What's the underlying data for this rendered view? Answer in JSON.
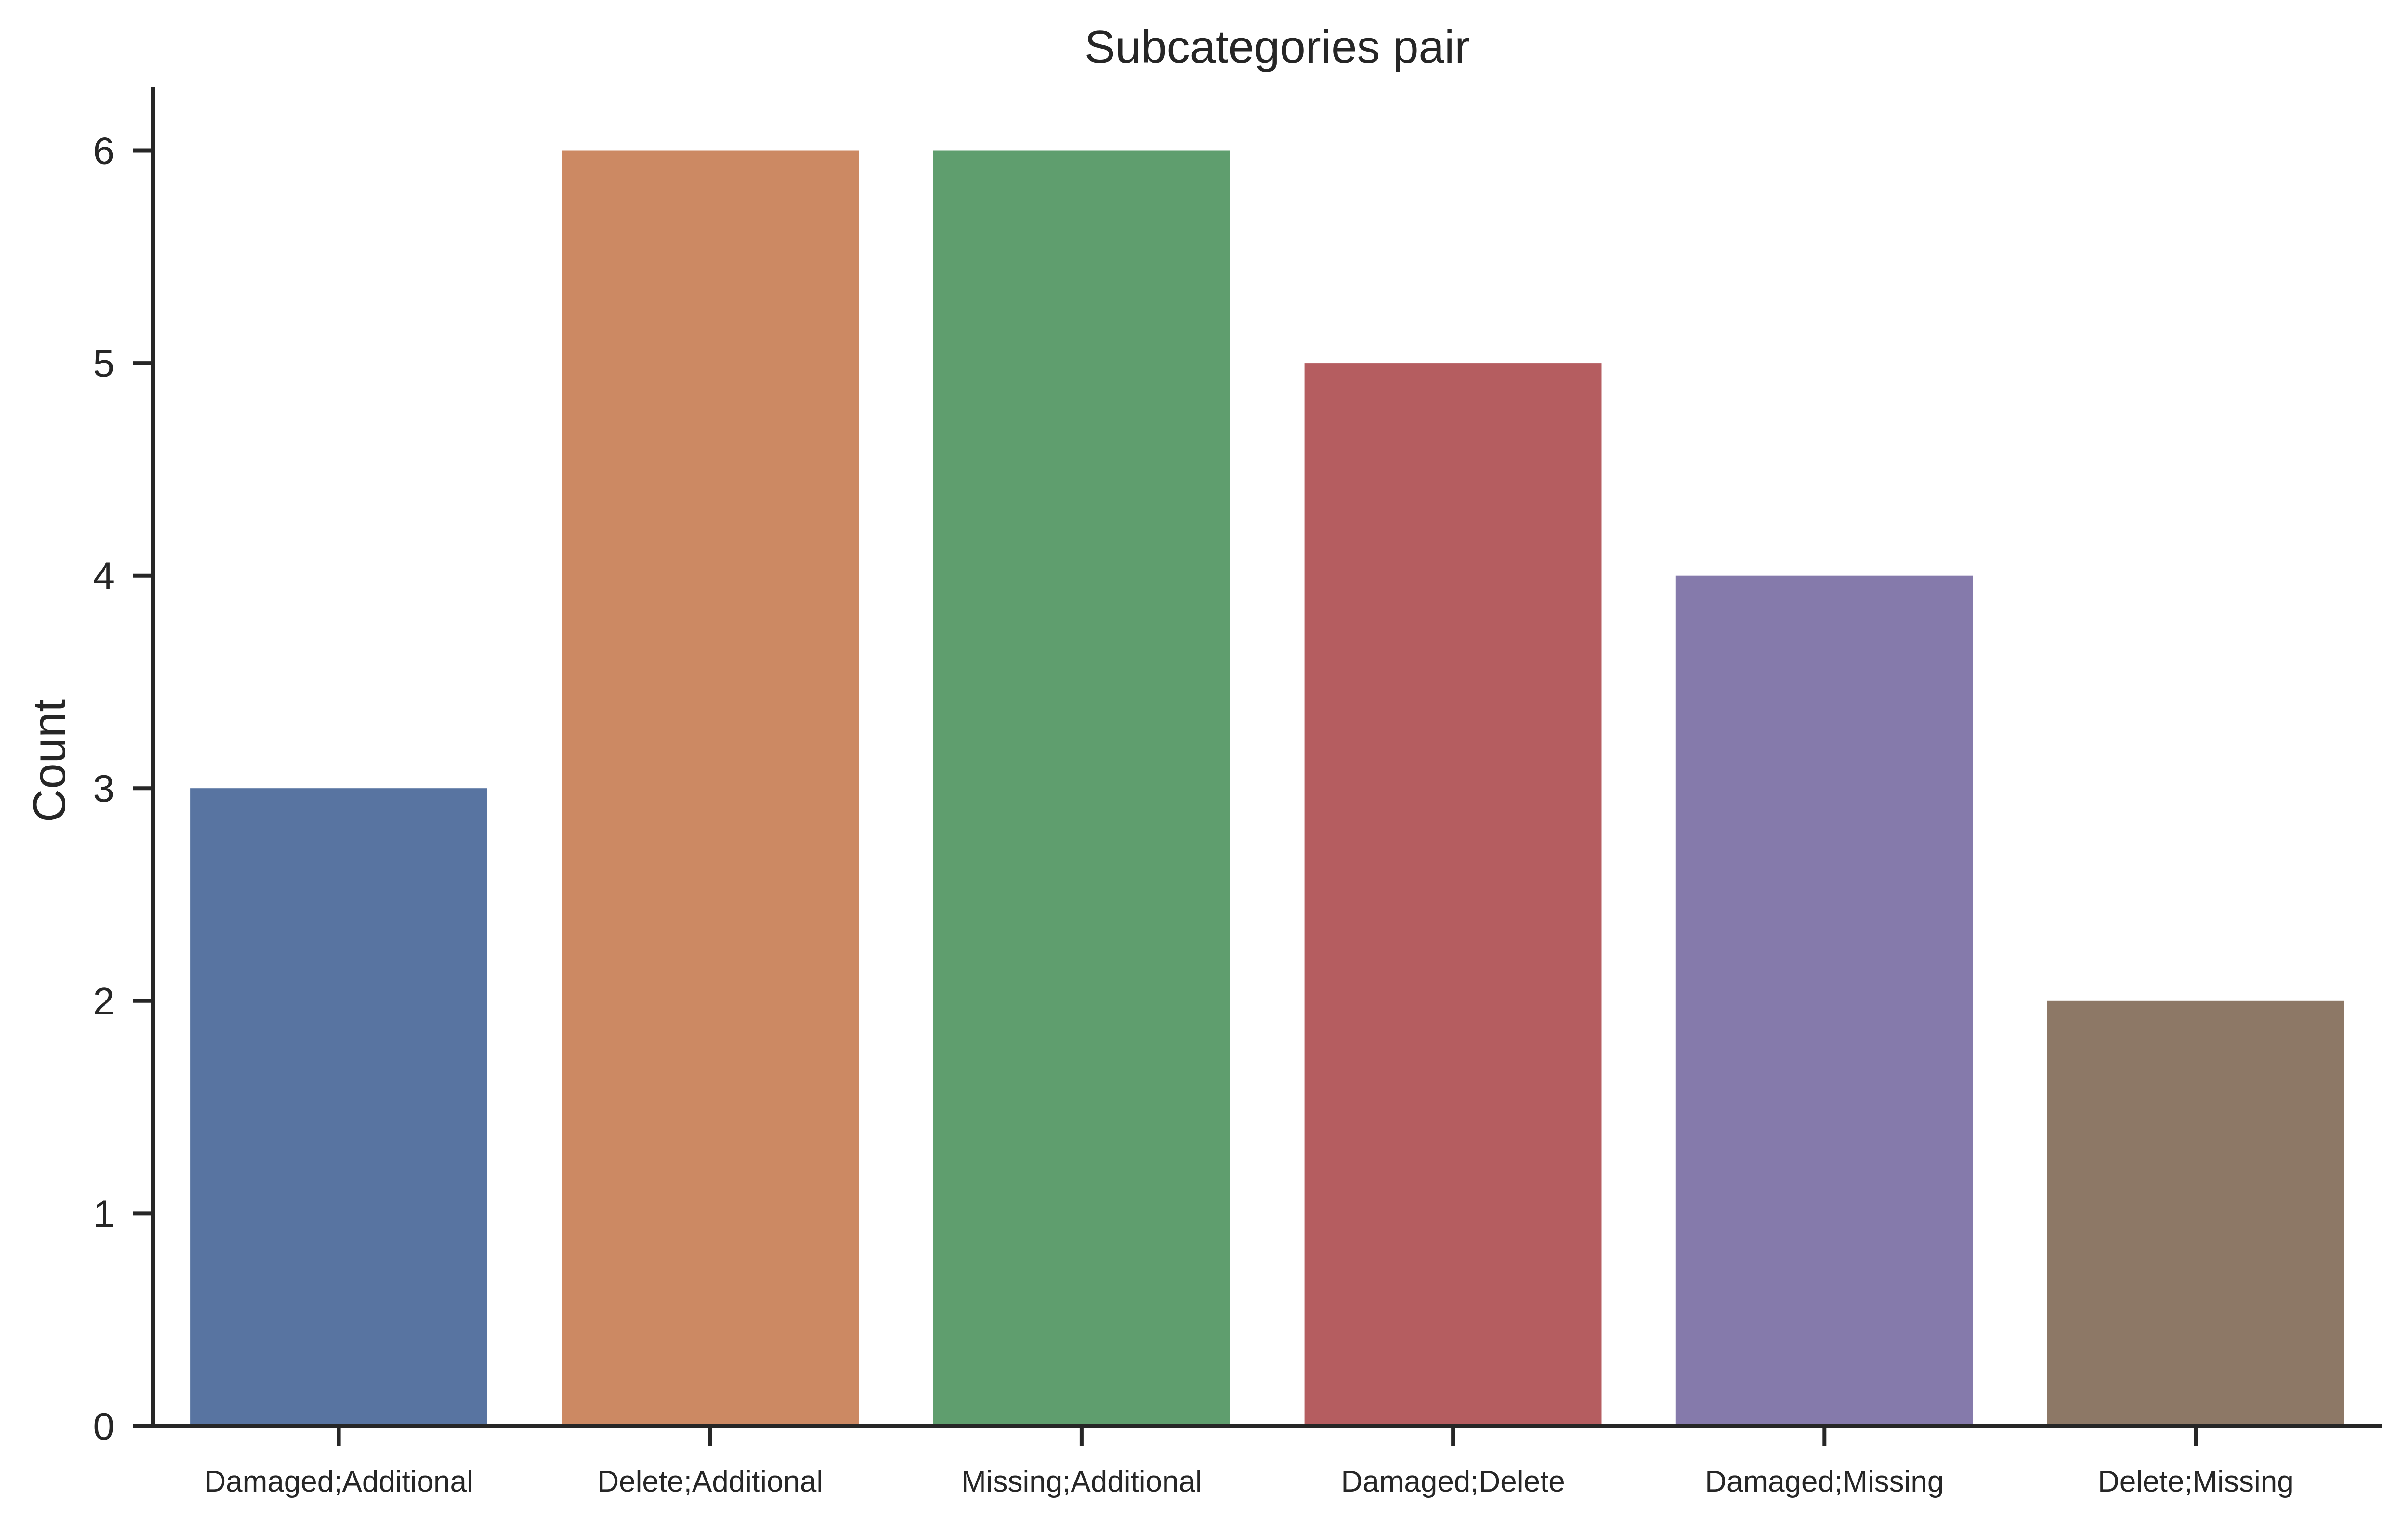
{
  "chart_data": {
    "type": "bar",
    "title": "Subcategories pair",
    "xlabel": "",
    "ylabel": "Count",
    "categories": [
      "Damaged;Additional",
      "Delete;Additional",
      "Missing;Additional",
      "Damaged;Delete",
      "Damaged;Missing",
      "Delete;Missing"
    ],
    "values": [
      3,
      6,
      6,
      5,
      4,
      2
    ],
    "colors": [
      "#5874a1",
      "#cc8963",
      "#5f9e6e",
      "#b55d60",
      "#857aab",
      "#8d7866"
    ],
    "ylim": [
      0,
      6.3
    ],
    "yticks": [
      0,
      1,
      2,
      3,
      4,
      5,
      6
    ],
    "grid": false,
    "legend": "none"
  }
}
